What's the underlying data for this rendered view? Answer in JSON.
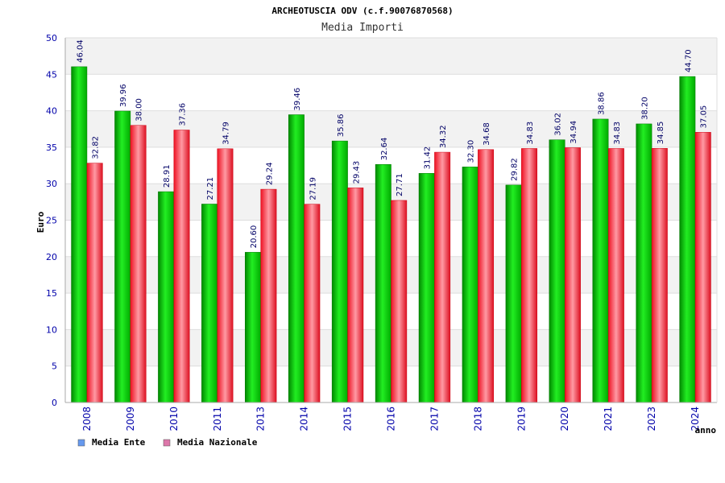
{
  "chart_data": {
    "type": "bar",
    "title": "ARCHEOTUSCIA ODV (c.f.90076870568)",
    "subtitle": "Media Importi",
    "ylabel": "Euro",
    "xlabel": "anno",
    "ylim": [
      0,
      50
    ],
    "yticks": [
      0,
      5,
      10,
      15,
      20,
      25,
      30,
      35,
      40,
      45,
      50
    ],
    "grid": true,
    "legend_position": "bottom-left",
    "categories": [
      "2008",
      "2009",
      "2010",
      "2011",
      "2013",
      "2014",
      "2015",
      "2016",
      "2017",
      "2018",
      "2019",
      "2020",
      "2021",
      "2023",
      "2024"
    ],
    "series": [
      {
        "name": "Media Ente",
        "color": "#00bb00",
        "legend_color": "#6699ee",
        "values": [
          46.04,
          39.96,
          28.91,
          27.21,
          20.6,
          39.46,
          35.86,
          32.64,
          31.42,
          32.3,
          29.82,
          36.02,
          38.86,
          38.2,
          44.7
        ],
        "labels": [
          "46.04",
          "39.96",
          "28.91",
          "27.21",
          "20.60",
          "39.46",
          "35.86",
          "32.64",
          "31.42",
          "32.30",
          "29.82",
          "36.02",
          "38.86",
          "38.20",
          "44.70"
        ]
      },
      {
        "name": "Media Nazionale",
        "color": "#ee2233",
        "legend_color": "#dd77aa",
        "values": [
          32.82,
          38.0,
          37.36,
          34.79,
          29.24,
          27.19,
          29.43,
          27.71,
          34.32,
          34.68,
          34.83,
          34.94,
          34.83,
          34.85,
          37.05
        ],
        "labels": [
          "32.82",
          "38.00",
          "37.36",
          "34.79",
          "29.24",
          "27.19",
          "29.43",
          "27.71",
          "34.32",
          "34.68",
          "34.83",
          "34.94",
          "34.83",
          "34.85",
          "37.05"
        ]
      }
    ]
  }
}
